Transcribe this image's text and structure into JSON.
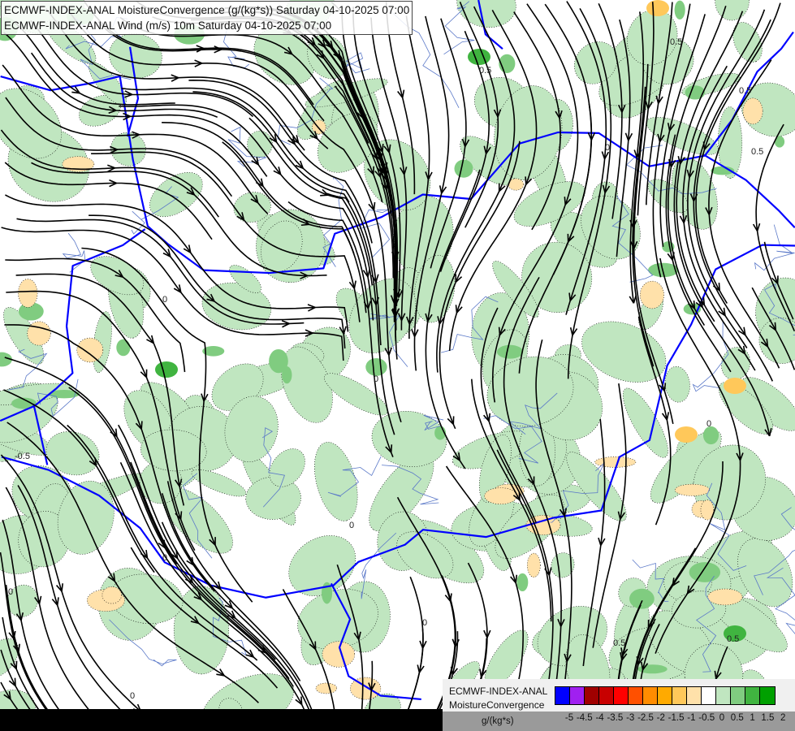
{
  "titles": [
    "ECMWF-INDEX-ANAL MoistureConvergence (g/(kg*s)) Saturday 04-10-2025 07:00",
    "ECMWF-INDEX-ANAL Wind (m/s) 10m Saturday 04-10-2025 07:00"
  ],
  "legend": {
    "line1": "ECMWF-INDEX-ANAL",
    "line2": "MoistureConvergence",
    "unit": "g/(kg*s)",
    "colors": [
      "#0000ff",
      "#a020f0",
      "#a00000",
      "#c80000",
      "#ff0000",
      "#ff5000",
      "#ff8c00",
      "#ffaa00",
      "#ffc85a",
      "#ffe1aa",
      "#ffffff",
      "#c0e6c0",
      "#80cc80",
      "#40b440",
      "#00a000"
    ],
    "ticks": [
      "-5",
      "-4.5",
      "-4",
      "-3.5",
      "-3",
      "-2.5",
      "-2",
      "-1.5",
      "-1",
      "-0.5",
      "0",
      "0.5",
      "1",
      "1.5",
      "2"
    ]
  },
  "contour_labels": [
    "0",
    "0.5",
    "-0.5"
  ],
  "colors": {
    "border": "#0000ff",
    "river": "#5a78c8",
    "streamline": "#000000",
    "nodata": "#000000"
  }
}
